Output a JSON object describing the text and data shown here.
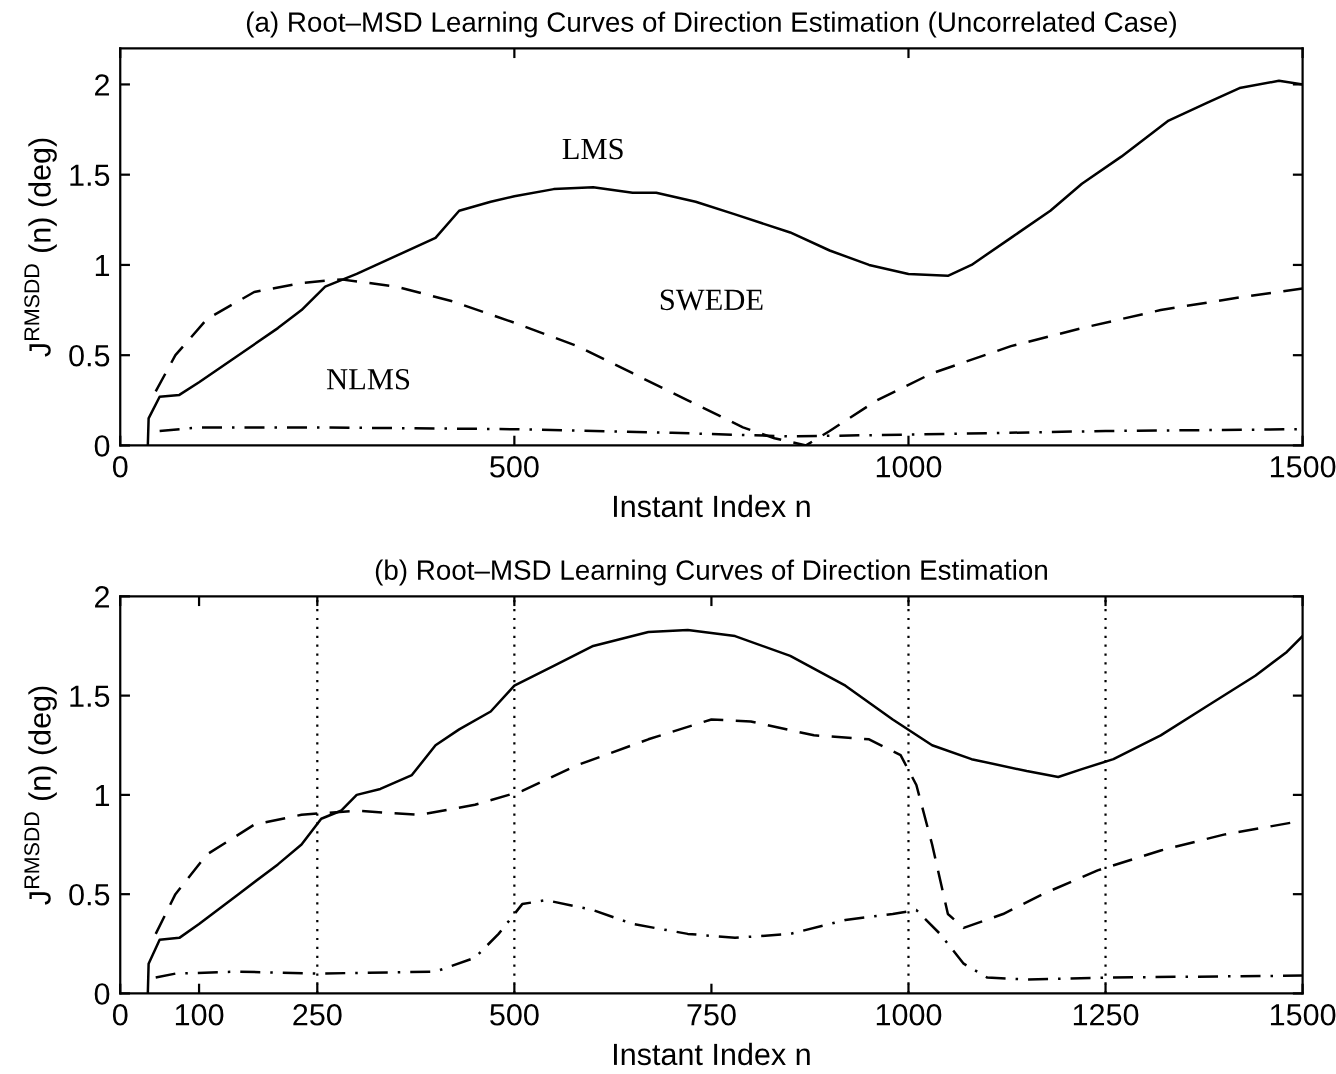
{
  "chart_data": [
    {
      "type": "line",
      "title": "(a) Root–MSD Learning Curves of Direction Estimation (Uncorrelated Case)",
      "xlabel": "Instant Index n",
      "ylabel": "J$^{RMSDD}$ (n) (deg)",
      "xlim": [
        0,
        1500
      ],
      "ylim": [
        0,
        2.2
      ],
      "xticks": [
        0,
        500,
        1000,
        1500
      ],
      "yticks": [
        0,
        0.5,
        1,
        1.5,
        2
      ],
      "grid": false,
      "legend": false,
      "series": [
        {
          "name": "LMS",
          "color": "#000000",
          "line_style": "solid",
          "x": [
            35,
            36,
            50,
            75,
            100,
            150,
            200,
            230,
            260,
            300,
            350,
            400,
            430,
            470,
            500,
            550,
            600,
            650,
            680,
            730,
            780,
            850,
            900,
            950,
            1000,
            1050,
            1080,
            1130,
            1180,
            1220,
            1270,
            1330,
            1380,
            1420,
            1470,
            1500
          ],
          "values": [
            0,
            0.15,
            0.27,
            0.28,
            0.35,
            0.5,
            0.65,
            0.75,
            0.88,
            0.95,
            1.05,
            1.15,
            1.3,
            1.35,
            1.38,
            1.42,
            1.43,
            1.4,
            1.4,
            1.35,
            1.28,
            1.18,
            1.08,
            1.0,
            0.95,
            0.94,
            1.0,
            1.15,
            1.3,
            1.45,
            1.6,
            1.8,
            1.9,
            1.98,
            2.02,
            2.0
          ]
        },
        {
          "name": "SWEDE",
          "color": "#000000",
          "line_style": "dashed",
          "x": [
            45,
            70,
            110,
            170,
            230,
            280,
            350,
            420,
            500,
            580,
            650,
            720,
            790,
            830,
            850,
            870,
            900,
            960,
            1030,
            1130,
            1220,
            1320,
            1420,
            1500
          ],
          "values": [
            0.3,
            0.5,
            0.7,
            0.85,
            0.9,
            0.92,
            0.88,
            0.8,
            0.68,
            0.55,
            0.4,
            0.25,
            0.1,
            0.04,
            0.02,
            0,
            0.08,
            0.25,
            0.4,
            0.55,
            0.65,
            0.75,
            0.82,
            0.87
          ]
        },
        {
          "name": "NLMS",
          "color": "#000000",
          "line_style": "dashdot",
          "x": [
            50,
            100,
            250,
            500,
            700,
            850,
            1000,
            1250,
            1500
          ],
          "values": [
            0.08,
            0.1,
            0.1,
            0.09,
            0.07,
            0.05,
            0.06,
            0.08,
            0.09
          ]
        }
      ]
    },
    {
      "type": "line",
      "title": "(b) Root–MSD Learning Curves of Direction Estimation",
      "xlabel": "Instant Index n",
      "ylabel": "J$^{RMSDD}$ (n) (deg)",
      "xlim": [
        0,
        1500
      ],
      "ylim": [
        0,
        2
      ],
      "xticks": [
        0,
        100,
        250,
        500,
        750,
        1000,
        1250,
        1500
      ],
      "yticks": [
        0,
        0.5,
        1,
        1.5,
        2
      ],
      "grid": false,
      "legend": false,
      "series": [
        {
          "color": "#000000",
          "line_style": "solid",
          "x": [
            35,
            36,
            50,
            75,
            100,
            150,
            200,
            230,
            255,
            280,
            300,
            330,
            370,
            400,
            430,
            470,
            500,
            550,
            600,
            670,
            720,
            780,
            850,
            920,
            980,
            1030,
            1080,
            1150,
            1190,
            1220,
            1260,
            1320,
            1380,
            1440,
            1480,
            1500
          ],
          "values": [
            0,
            0.15,
            0.27,
            0.28,
            0.35,
            0.5,
            0.65,
            0.75,
            0.88,
            0.92,
            1.0,
            1.03,
            1.1,
            1.25,
            1.33,
            1.42,
            1.55,
            1.65,
            1.75,
            1.82,
            1.83,
            1.8,
            1.7,
            1.55,
            1.38,
            1.25,
            1.18,
            1.12,
            1.09,
            1.13,
            1.18,
            1.3,
            1.45,
            1.6,
            1.72,
            1.8
          ]
        },
        {
          "color": "#000000",
          "line_style": "dashed",
          "x": [
            45,
            70,
            110,
            170,
            230,
            300,
            380,
            450,
            510,
            580,
            670,
            750,
            800,
            880,
            950,
            990,
            1010,
            1030,
            1050,
            1070,
            1120,
            1170,
            1240,
            1320,
            1400,
            1500
          ],
          "values": [
            0.3,
            0.5,
            0.7,
            0.85,
            0.9,
            0.92,
            0.9,
            0.95,
            1.02,
            1.15,
            1.28,
            1.38,
            1.37,
            1.3,
            1.28,
            1.2,
            1.05,
            0.75,
            0.4,
            0.33,
            0.4,
            0.5,
            0.62,
            0.72,
            0.8,
            0.87
          ]
        },
        {
          "color": "#000000",
          "line_style": "dashdot",
          "x": [
            45,
            70,
            150,
            250,
            400,
            450,
            480,
            510,
            540,
            600,
            650,
            720,
            780,
            850,
            920,
            980,
            1010,
            1040,
            1070,
            1100,
            1150,
            1250,
            1500
          ],
          "values": [
            0.08,
            0.1,
            0.11,
            0.1,
            0.11,
            0.18,
            0.3,
            0.45,
            0.47,
            0.42,
            0.35,
            0.3,
            0.28,
            0.3,
            0.37,
            0.4,
            0.42,
            0.3,
            0.15,
            0.08,
            0.07,
            0.08,
            0.09
          ]
        }
      ],
      "ref_lines": [
        {
          "axis": "x",
          "value": 250,
          "color": "#000000",
          "line_style": "dotted"
        },
        {
          "axis": "x",
          "value": 500,
          "color": "#000000",
          "line_style": "dotted"
        },
        {
          "axis": "x",
          "value": 1000,
          "color": "#000000",
          "line_style": "dotted"
        },
        {
          "axis": "x",
          "value": 1250,
          "color": "#000000",
          "line_style": "dotted"
        }
      ]
    }
  ]
}
